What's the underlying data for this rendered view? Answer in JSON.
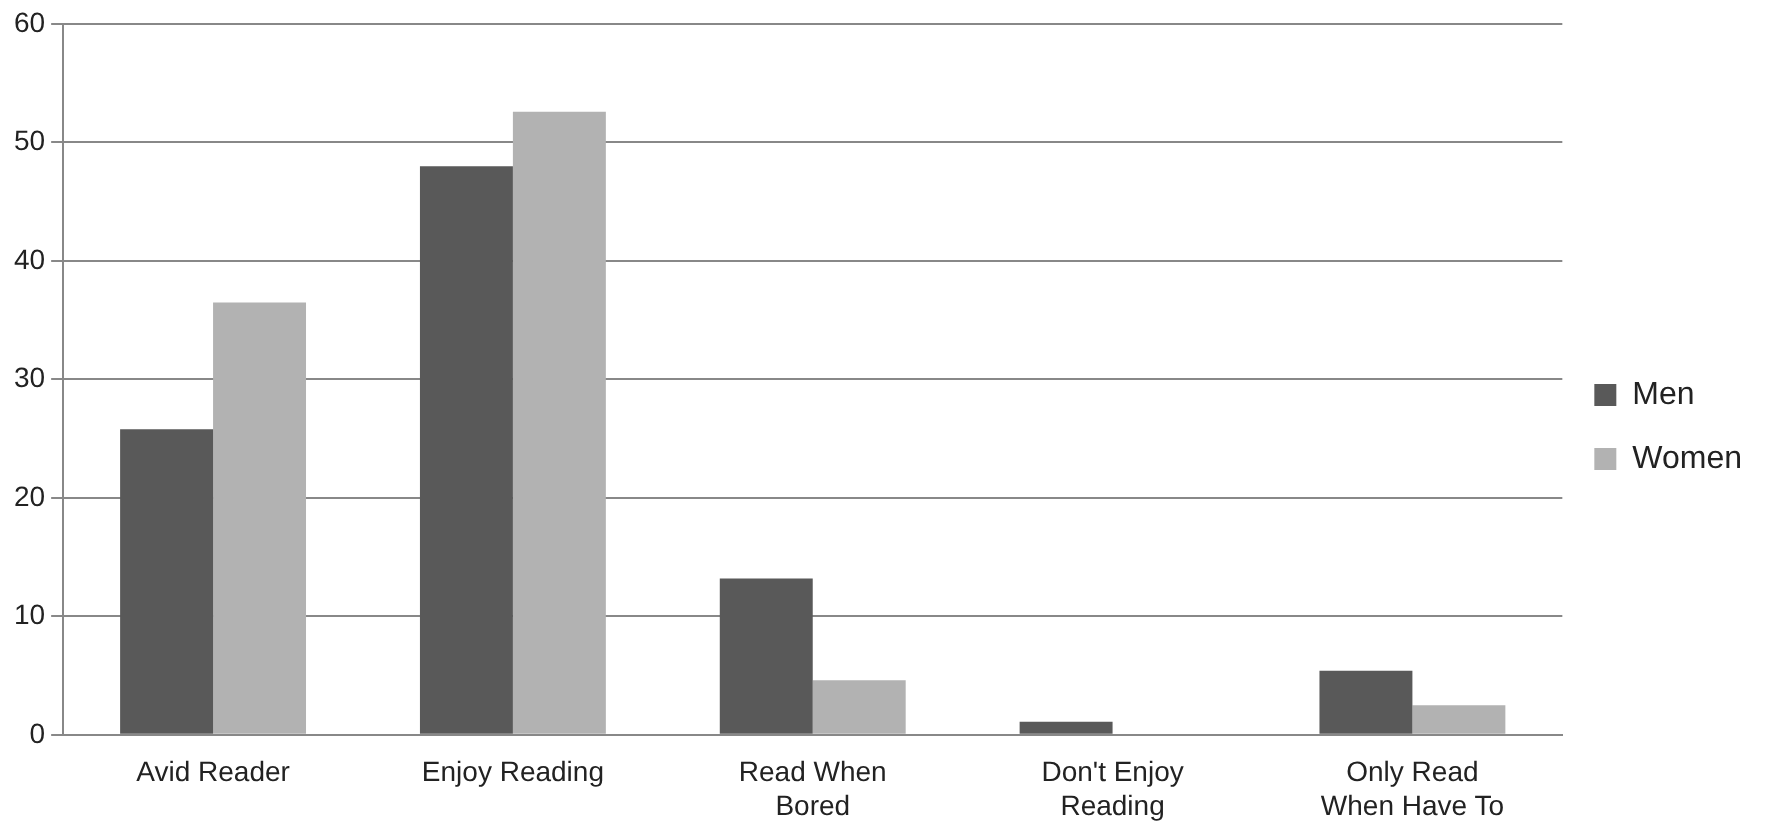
{
  "chart_data": {
    "type": "bar",
    "categories": [
      "Avid Reader",
      "Enjoy Reading",
      "Read When Bored",
      "Don't Enjoy Reading",
      "Only Read When Have To"
    ],
    "series": [
      {
        "name": "Men",
        "color": "#595959",
        "values": [
          25.8,
          48,
          13.2,
          1.1,
          5.4
        ]
      },
      {
        "name": "Women",
        "color": "#b2b2b2",
        "values": [
          36.5,
          52.6,
          4.6,
          0,
          2.5
        ]
      }
    ],
    "ylim": [
      0,
      60
    ],
    "yticks": [
      0,
      10,
      20,
      30,
      40,
      50,
      60
    ],
    "grid": "y",
    "legend": "right"
  }
}
